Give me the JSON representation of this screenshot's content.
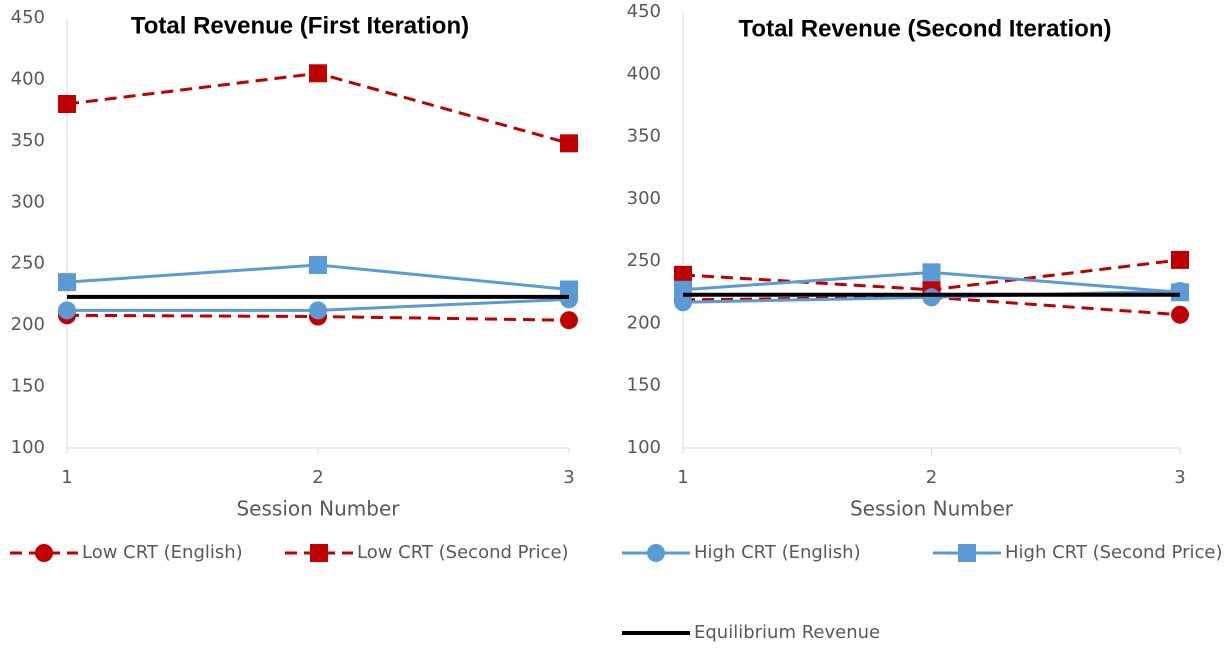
{
  "chart_data": [
    {
      "type": "line",
      "title": "Total Revenue (First Iteration)",
      "x_label": "Session Number",
      "x": [
        1,
        2,
        3
      ],
      "xlim": [
        1,
        3
      ],
      "xticks": [
        1,
        2,
        3
      ],
      "ylim": [
        100,
        450
      ],
      "yticks": [
        100,
        150,
        200,
        250,
        300,
        350,
        400,
        450
      ],
      "series": [
        {
          "name": "Low CRT (English)",
          "color": "#c00000",
          "dashed": true,
          "marker": "circle",
          "values": [
            208,
            207,
            204
          ]
        },
        {
          "name": "Low CRT (Second Price)",
          "color": "#c00000",
          "dashed": true,
          "marker": "square",
          "values": [
            380,
            405,
            348
          ]
        },
        {
          "name": "High CRT (English)",
          "color": "#5b9bd5",
          "dashed": false,
          "marker": "circle",
          "values": [
            212,
            212,
            221
          ]
        },
        {
          "name": "High CRT (Second Price)",
          "color": "#5b9bd5",
          "dashed": false,
          "marker": "square",
          "values": [
            235,
            249,
            229
          ]
        },
        {
          "name": "Equilibrium Revenue",
          "color": "#000000",
          "dashed": false,
          "marker": "none",
          "values": [
            223,
            223,
            223
          ]
        }
      ]
    },
    {
      "type": "line",
      "title": "Total Revenue (Second Iteration)",
      "x_label": "Session Number",
      "x": [
        1,
        2,
        3
      ],
      "xlim": [
        1,
        3
      ],
      "xticks": [
        1,
        2,
        3
      ],
      "ylim": [
        100,
        450
      ],
      "yticks": [
        100,
        150,
        200,
        250,
        300,
        350,
        400,
        450
      ],
      "series": [
        {
          "color": "#c00000",
          "dashed": true,
          "marker": "circle",
          "values": [
            219,
            221,
            207
          ]
        },
        {
          "color": "#c00000",
          "dashed": true,
          "marker": "square",
          "values": [
            239,
            227,
            251
          ]
        },
        {
          "color": "#5b9bd5",
          "dashed": false,
          "marker": "circle",
          "values": [
            217,
            221,
            226
          ]
        },
        {
          "color": "#5b9bd5",
          "dashed": false,
          "marker": "square",
          "values": [
            227,
            241,
            225
          ]
        },
        {
          "color": "#000000",
          "dashed": false,
          "marker": "none",
          "values": [
            223,
            223,
            223
          ]
        }
      ]
    }
  ]
}
